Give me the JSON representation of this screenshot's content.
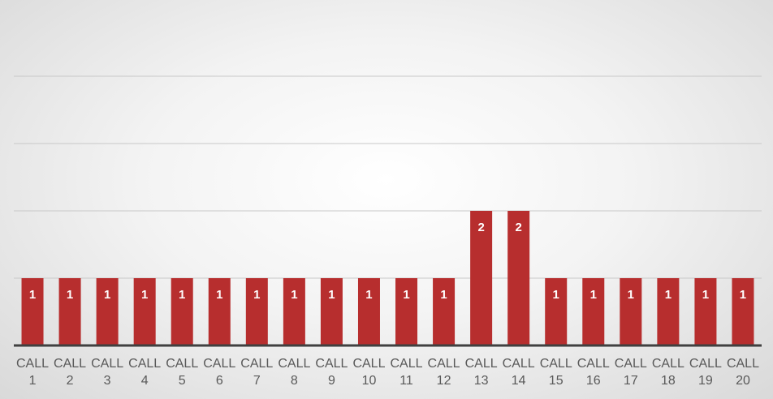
{
  "chart_data": {
    "type": "bar",
    "title": "",
    "xlabel": "",
    "ylabel": "",
    "ylim": [
      0,
      4
    ],
    "grid": true,
    "legend": "none",
    "bar_color": "#b72e2e",
    "categories": [
      [
        "CALL",
        "1"
      ],
      [
        "CALL",
        "2"
      ],
      [
        "CALL",
        "3"
      ],
      [
        "CALL",
        "4"
      ],
      [
        "CALL",
        "5"
      ],
      [
        "CALL",
        "6"
      ],
      [
        "CALL",
        "7"
      ],
      [
        "CALL",
        "8"
      ],
      [
        "CALL",
        "9"
      ],
      [
        "CALL",
        "10"
      ],
      [
        "CALL",
        "11"
      ],
      [
        "CALL",
        "12"
      ],
      [
        "CALL",
        "13"
      ],
      [
        "CALL",
        "14"
      ],
      [
        "CALL",
        "15"
      ],
      [
        "CALL",
        "16"
      ],
      [
        "CALL",
        "17"
      ],
      [
        "CALL",
        "18"
      ],
      [
        "CALL",
        "19"
      ],
      [
        "CALL",
        "20"
      ]
    ],
    "values": [
      1,
      1,
      1,
      1,
      1,
      1,
      1,
      1,
      1,
      1,
      1,
      1,
      2,
      2,
      1,
      1,
      1,
      1,
      1,
      1
    ],
    "data_labels": [
      "1",
      "1",
      "1",
      "1",
      "1",
      "1",
      "1",
      "1",
      "1",
      "1",
      "1",
      "1",
      "2",
      "2",
      "1",
      "1",
      "1",
      "1",
      "1",
      "1"
    ]
  }
}
